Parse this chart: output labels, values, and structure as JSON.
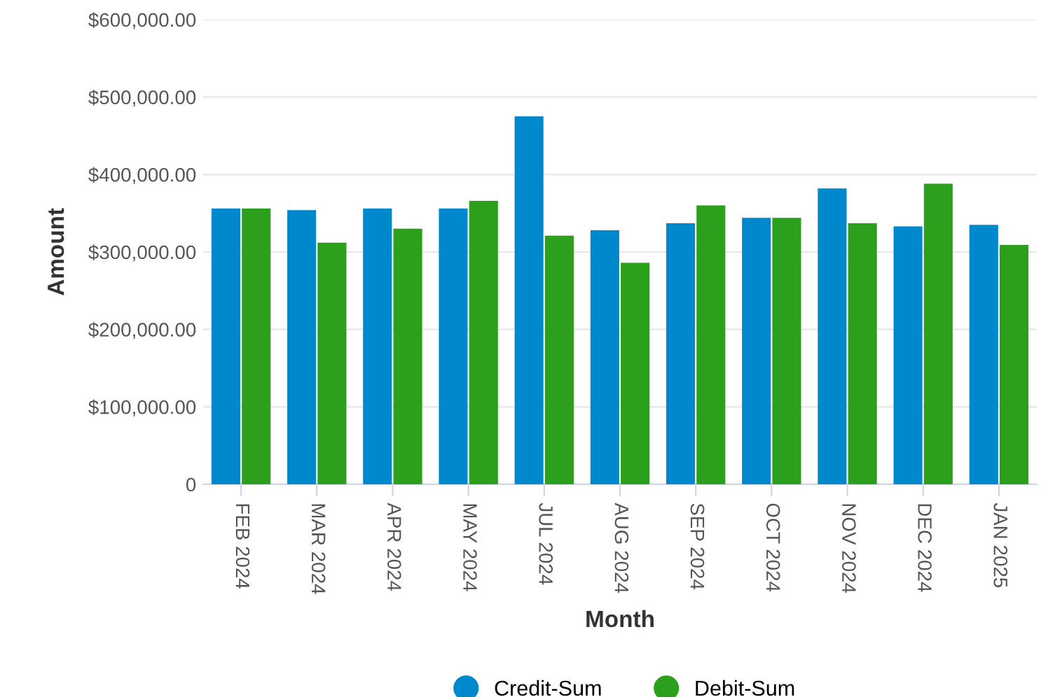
{
  "chart_data": {
    "type": "bar",
    "xlabel": "Month",
    "ylabel": "Amount",
    "categories": [
      "FEB 2024",
      "MAR 2024",
      "APR 2024",
      "MAY 2024",
      "JUL 2024",
      "AUG 2024",
      "SEP 2024",
      "OCT 2024",
      "NOV 2024",
      "DEC 2024",
      "JAN 2025"
    ],
    "series": [
      {
        "name": "Credit-Sum",
        "color": "#0088cc",
        "values": [
          356000,
          354000,
          356000,
          356000,
          475000,
          328000,
          337000,
          344000,
          382000,
          333000,
          335000
        ]
      },
      {
        "name": "Debit-Sum",
        "color": "#2ca01c",
        "values": [
          356000,
          312000,
          330000,
          366000,
          321000,
          286000,
          360000,
          344000,
          337000,
          388000,
          309000
        ]
      }
    ],
    "ylim": [
      0,
      600000
    ],
    "yticks": [
      {
        "value": 0,
        "label": "0"
      },
      {
        "value": 100000,
        "label": "$100,000.00"
      },
      {
        "value": 200000,
        "label": "$200,000.00"
      },
      {
        "value": 300000,
        "label": "$300,000.00"
      },
      {
        "value": 400000,
        "label": "$400,000.00"
      },
      {
        "value": 500000,
        "label": "$500,000.00"
      },
      {
        "value": 600000,
        "label": "$600,000.00"
      }
    ],
    "grid": "y",
    "legend": "bottom"
  }
}
